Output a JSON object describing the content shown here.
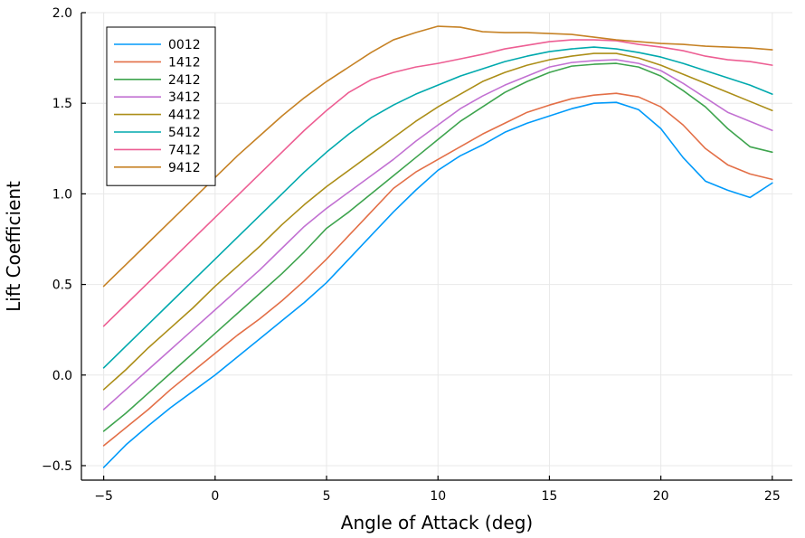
{
  "chart_data": {
    "type": "line",
    "title": "",
    "xlabel": "Angle of Attack (deg)",
    "ylabel": "Lift Coefficient",
    "xlim": [
      -6,
      25.9
    ],
    "ylim": [
      -0.58,
      2.0
    ],
    "xticks": [
      -5,
      0,
      5,
      10,
      15,
      20,
      25
    ],
    "xtick_labels": [
      "−5",
      "0",
      "5",
      "10",
      "15",
      "20",
      "25"
    ],
    "yticks": [
      -0.5,
      0.0,
      0.5,
      1.0,
      1.5,
      2.0
    ],
    "ytick_labels": [
      "−0.5",
      "0.0",
      "0.5",
      "1.0",
      "1.5",
      "2.0"
    ],
    "grid": true,
    "legend_position": "top-left",
    "x": [
      -5,
      -4,
      -3,
      -2,
      -1,
      0,
      1,
      2,
      3,
      4,
      5,
      6,
      7,
      8,
      9,
      10,
      11,
      12,
      13,
      14,
      15,
      16,
      17,
      18,
      19,
      20,
      21,
      22,
      23,
      24,
      25
    ],
    "series": [
      {
        "name": "0012",
        "color": "#009AFA",
        "values": [
          -0.51,
          -0.385,
          -0.28,
          -0.18,
          -0.09,
          0.0,
          0.1,
          0.2,
          0.3,
          0.4,
          0.51,
          0.64,
          0.77,
          0.9,
          1.02,
          1.13,
          1.21,
          1.27,
          1.34,
          1.39,
          1.43,
          1.47,
          1.5,
          1.505,
          1.465,
          1.36,
          1.2,
          1.07,
          1.02,
          0.98,
          1.06
        ]
      },
      {
        "name": "1412",
        "color": "#E36F47",
        "values": [
          -0.39,
          -0.29,
          -0.19,
          -0.08,
          0.02,
          0.12,
          0.22,
          0.31,
          0.41,
          0.52,
          0.64,
          0.77,
          0.9,
          1.03,
          1.12,
          1.19,
          1.26,
          1.33,
          1.39,
          1.45,
          1.49,
          1.525,
          1.545,
          1.555,
          1.535,
          1.48,
          1.38,
          1.25,
          1.16,
          1.11,
          1.08
        ]
      },
      {
        "name": "2412",
        "color": "#3EA44E",
        "values": [
          -0.31,
          -0.21,
          -0.1,
          0.01,
          0.12,
          0.23,
          0.34,
          0.45,
          0.56,
          0.68,
          0.81,
          0.9,
          1.0,
          1.1,
          1.2,
          1.3,
          1.4,
          1.48,
          1.56,
          1.62,
          1.67,
          1.705,
          1.715,
          1.72,
          1.7,
          1.65,
          1.57,
          1.48,
          1.36,
          1.26,
          1.23
        ]
      },
      {
        "name": "3412",
        "color": "#C271D2",
        "values": [
          -0.19,
          -0.08,
          0.03,
          0.14,
          0.25,
          0.36,
          0.47,
          0.58,
          0.7,
          0.82,
          0.92,
          1.01,
          1.1,
          1.19,
          1.29,
          1.38,
          1.47,
          1.54,
          1.6,
          1.65,
          1.7,
          1.725,
          1.735,
          1.74,
          1.72,
          1.68,
          1.61,
          1.53,
          1.45,
          1.4,
          1.35
        ]
      },
      {
        "name": "4412",
        "color": "#AC8E18",
        "values": [
          -0.08,
          0.03,
          0.15,
          0.26,
          0.37,
          0.49,
          0.6,
          0.71,
          0.83,
          0.94,
          1.04,
          1.13,
          1.22,
          1.31,
          1.4,
          1.48,
          1.55,
          1.62,
          1.67,
          1.71,
          1.74,
          1.76,
          1.775,
          1.775,
          1.75,
          1.71,
          1.66,
          1.61,
          1.56,
          1.51,
          1.46
        ]
      },
      {
        "name": "5412",
        "color": "#00A9AD",
        "values": [
          0.04,
          0.16,
          0.28,
          0.4,
          0.52,
          0.64,
          0.76,
          0.88,
          1.0,
          1.12,
          1.23,
          1.33,
          1.42,
          1.49,
          1.55,
          1.6,
          1.65,
          1.69,
          1.73,
          1.76,
          1.785,
          1.8,
          1.81,
          1.8,
          1.78,
          1.755,
          1.72,
          1.68,
          1.64,
          1.6,
          1.55
        ]
      },
      {
        "name": "7412",
        "color": "#ED5E93",
        "values": [
          0.27,
          0.39,
          0.51,
          0.63,
          0.75,
          0.87,
          0.99,
          1.11,
          1.23,
          1.35,
          1.46,
          1.56,
          1.63,
          1.67,
          1.7,
          1.72,
          1.745,
          1.77,
          1.8,
          1.82,
          1.84,
          1.85,
          1.85,
          1.845,
          1.825,
          1.81,
          1.79,
          1.76,
          1.74,
          1.73,
          1.71
        ]
      },
      {
        "name": "9412",
        "color": "#C68225",
        "values": [
          0.49,
          0.61,
          0.73,
          0.85,
          0.97,
          1.09,
          1.21,
          1.32,
          1.43,
          1.53,
          1.62,
          1.7,
          1.78,
          1.85,
          1.89,
          1.925,
          1.92,
          1.895,
          1.89,
          1.89,
          1.885,
          1.88,
          1.865,
          1.85,
          1.84,
          1.83,
          1.825,
          1.815,
          1.81,
          1.805,
          1.795
        ]
      }
    ]
  }
}
